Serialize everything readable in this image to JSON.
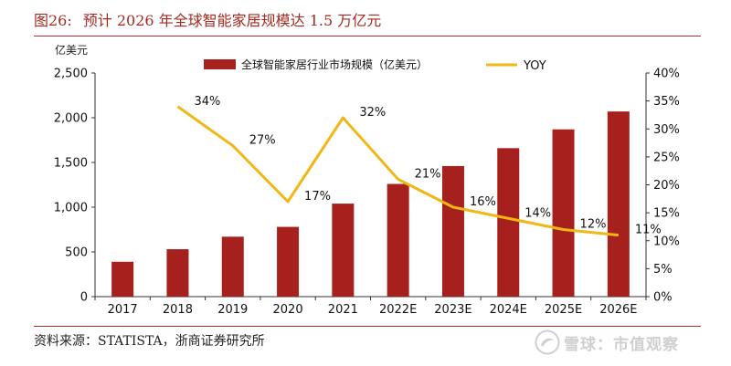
{
  "header": {
    "figure_label": "图26:",
    "title": "预计 2026 年全球智能家居规模达 1.5 万亿元"
  },
  "footer": {
    "source": "资料来源：STATISTA，浙商证券研究所",
    "watermark_text": "雪球：市值观察",
    "watermark_icon": "snowball-logo-icon"
  },
  "colors": {
    "bar": "#a6211d",
    "line": "#f0b716",
    "title": "#a52a22",
    "rule": "#b5322b"
  },
  "chart_data": {
    "type": "bar",
    "title": "",
    "xlabel": "",
    "ylabel": "亿美元",
    "y2label": "",
    "categories": [
      "2017",
      "2018",
      "2019",
      "2020",
      "2021",
      "2022E",
      "2023E",
      "2024E",
      "2025E",
      "2026E"
    ],
    "ylim": [
      0,
      2500
    ],
    "yticks": [
      0,
      500,
      1000,
      1500,
      2000,
      2500
    ],
    "ytick_labels": [
      "0",
      "500",
      "1,000",
      "1,500",
      "2,000",
      "2,500"
    ],
    "y2lim": [
      0,
      40
    ],
    "y2ticks": [
      0,
      5,
      10,
      15,
      20,
      25,
      30,
      35,
      40
    ],
    "y2tick_labels": [
      "0%",
      "5%",
      "10%",
      "15%",
      "20%",
      "25%",
      "30%",
      "35%",
      "40%"
    ],
    "grid": false,
    "legend_position": "top-center",
    "series": [
      {
        "name": "全球智能家居行业市场规模（亿美元）",
        "type": "bar",
        "axis": "left",
        "values": [
          390,
          530,
          670,
          780,
          1040,
          1260,
          1460,
          1660,
          1870,
          2070
        ]
      },
      {
        "name": "YOY",
        "type": "line",
        "axis": "right",
        "values": [
          null,
          34,
          27,
          17,
          32,
          21,
          16,
          14,
          12,
          11
        ],
        "labels": [
          "",
          "34%",
          "27%",
          "17%",
          "32%",
          "21%",
          "16%",
          "14%",
          "12%",
          "11%"
        ]
      }
    ]
  }
}
